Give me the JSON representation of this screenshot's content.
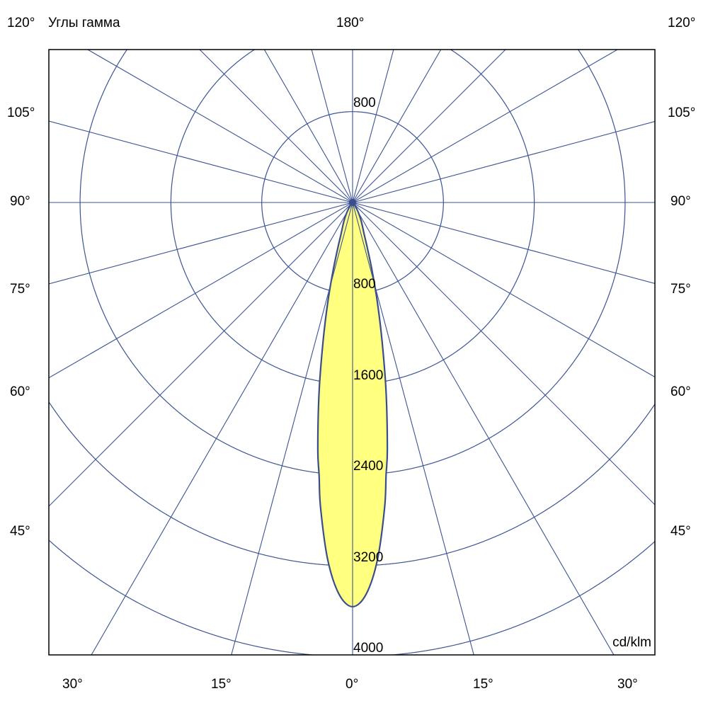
{
  "chart_data": {
    "type": "polar",
    "title": "Углы гамма",
    "unit_label": "cd/klm",
    "radial_ticks": [
      800,
      1600,
      2400,
      3200,
      4000
    ],
    "radial_max": 4000,
    "angle_step_deg": 15,
    "grid": true,
    "top_angle_label": "180°",
    "corner_angle_label": "120°",
    "side_angle_labels": [
      "105°",
      "90°",
      "75°",
      "60°",
      "45°"
    ],
    "bottom_angle_labels": [
      "30°",
      "15°",
      "0°",
      "15°",
      "30°"
    ],
    "series": [
      {
        "angles_deg": [
          0,
          2,
          4,
          6,
          7,
          8,
          10,
          12,
          14,
          16,
          18,
          20,
          25,
          30,
          40,
          50,
          90
        ],
        "values": [
          3560,
          3450,
          3150,
          2700,
          2420,
          2200,
          1700,
          1250,
          900,
          620,
          420,
          300,
          180,
          100,
          30,
          0,
          0
        ]
      }
    ],
    "colors": {
      "grid": "#3d5494",
      "fill": "#ffff80",
      "outline": "#3a4e8c",
      "frame": "#000000"
    }
  }
}
